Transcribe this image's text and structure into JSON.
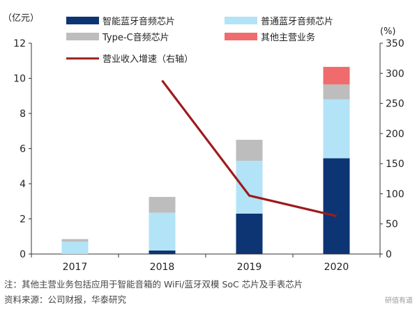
{
  "chart_data": {
    "type": "bar",
    "stacked": true,
    "categories": [
      "2017",
      "2018",
      "2019",
      "2020"
    ],
    "left_axis": {
      "label": "（亿元）",
      "ylim": [
        0,
        12
      ],
      "ticks": [
        "0",
        "2",
        "4",
        "6",
        "8",
        "10",
        "12"
      ]
    },
    "right_axis": {
      "label": "(%)",
      "ylim": [
        0,
        350
      ],
      "ticks": [
        "0",
        "50",
        "100",
        "150",
        "200",
        "250",
        "300",
        "350"
      ]
    },
    "series": [
      {
        "name": "智能蓝牙音频芯片",
        "color": "#0d3574",
        "values": [
          0.0,
          0.2,
          2.3,
          5.45
        ]
      },
      {
        "name": "普通蓝牙音频芯片",
        "color": "#b3e3f7",
        "values": [
          0.7,
          2.15,
          3.0,
          3.35
        ]
      },
      {
        "name": "Type-C音频芯片",
        "color": "#bdbdbd",
        "values": [
          0.15,
          0.9,
          1.2,
          0.85
        ]
      },
      {
        "name": "其他主营业务",
        "color": "#f06b6b",
        "values": [
          0.0,
          0.0,
          0.0,
          1.0
        ]
      }
    ],
    "line_series": {
      "name": "营业收入增速（右轴）",
      "color": "#9e1b1b",
      "axis": "right",
      "values": [
        null,
        288,
        97,
        63
      ]
    },
    "legend_placement": "top",
    "grid": false
  },
  "footnote": "注：其他主营业务包括应用于智能音箱的 WiFi/蓝牙双模 SoC 芯片及手表芯片",
  "source": "资料来源：公司财报，华泰研究",
  "watermark": "研值有道"
}
